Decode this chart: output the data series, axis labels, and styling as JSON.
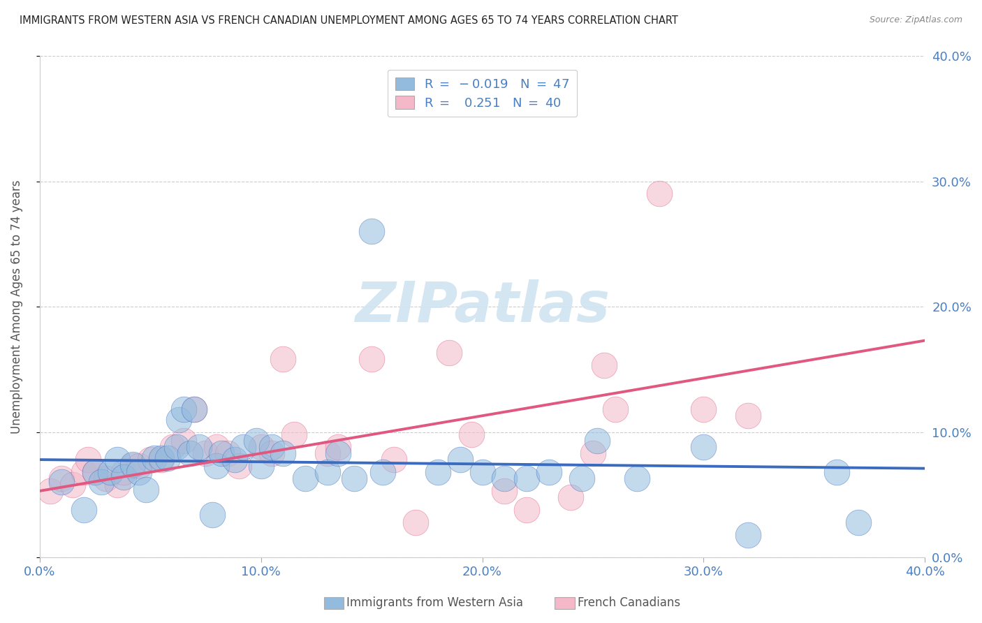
{
  "title": "IMMIGRANTS FROM WESTERN ASIA VS FRENCH CANADIAN UNEMPLOYMENT AMONG AGES 65 TO 74 YEARS CORRELATION CHART",
  "source": "Source: ZipAtlas.com",
  "ylabel": "Unemployment Among Ages 65 to 74 years",
  "xlim": [
    0.0,
    0.4
  ],
  "ylim": [
    0.0,
    0.4
  ],
  "xticks": [
    0.0,
    0.1,
    0.2,
    0.3,
    0.4
  ],
  "yticks": [
    0.0,
    0.1,
    0.2,
    0.3,
    0.4
  ],
  "xticklabels": [
    "0.0%",
    "10.0%",
    "20.0%",
    "30.0%",
    "40.0%"
  ],
  "yticklabels_right": [
    "0.0%",
    "10.0%",
    "20.0%",
    "30.0%",
    "40.0%"
  ],
  "blue_color": "#92bbde",
  "pink_color": "#f4b8c8",
  "trend_blue": "#3a6bbf",
  "trend_pink": "#e05880",
  "watermark_color": "#d0e4f0",
  "blue_scatter_x": [
    0.01,
    0.02,
    0.025,
    0.028,
    0.032,
    0.035,
    0.038,
    0.042,
    0.045,
    0.048,
    0.052,
    0.055,
    0.058,
    0.062,
    0.063,
    0.065,
    0.068,
    0.07,
    0.072,
    0.078,
    0.08,
    0.082,
    0.088,
    0.092,
    0.098,
    0.1,
    0.105,
    0.11,
    0.12,
    0.13,
    0.135,
    0.142,
    0.15,
    0.155,
    0.18,
    0.19,
    0.2,
    0.21,
    0.22,
    0.23,
    0.245,
    0.252,
    0.27,
    0.3,
    0.32,
    0.36,
    0.37
  ],
  "blue_scatter_y": [
    0.06,
    0.038,
    0.068,
    0.06,
    0.068,
    0.078,
    0.064,
    0.074,
    0.068,
    0.054,
    0.079,
    0.079,
    0.079,
    0.088,
    0.11,
    0.118,
    0.083,
    0.118,
    0.088,
    0.034,
    0.073,
    0.083,
    0.078,
    0.088,
    0.093,
    0.073,
    0.088,
    0.083,
    0.063,
    0.068,
    0.083,
    0.063,
    0.26,
    0.068,
    0.068,
    0.078,
    0.068,
    0.063,
    0.063,
    0.068,
    0.063,
    0.093,
    0.063,
    0.088,
    0.018,
    0.068,
    0.028
  ],
  "pink_scatter_x": [
    0.005,
    0.01,
    0.015,
    0.02,
    0.022,
    0.025,
    0.03,
    0.035,
    0.038,
    0.042,
    0.045,
    0.05,
    0.055,
    0.06,
    0.065,
    0.07,
    0.075,
    0.08,
    0.085,
    0.09,
    0.1,
    0.105,
    0.11,
    0.115,
    0.13,
    0.135,
    0.15,
    0.16,
    0.17,
    0.185,
    0.195,
    0.21,
    0.22,
    0.24,
    0.25,
    0.255,
    0.26,
    0.28,
    0.3,
    0.32
  ],
  "pink_scatter_y": [
    0.053,
    0.063,
    0.058,
    0.068,
    0.078,
    0.068,
    0.063,
    0.058,
    0.068,
    0.073,
    0.073,
    0.078,
    0.078,
    0.088,
    0.093,
    0.118,
    0.083,
    0.088,
    0.083,
    0.073,
    0.088,
    0.083,
    0.158,
    0.098,
    0.083,
    0.088,
    0.158,
    0.078,
    0.028,
    0.163,
    0.098,
    0.053,
    0.038,
    0.048,
    0.083,
    0.153,
    0.118,
    0.29,
    0.118,
    0.113
  ],
  "blue_trend_x": [
    0.0,
    0.4
  ],
  "blue_trend_y": [
    0.078,
    0.071
  ],
  "pink_trend_x": [
    0.0,
    0.4
  ],
  "pink_trend_y": [
    0.053,
    0.173
  ],
  "background_color": "#ffffff",
  "grid_color": "#cccccc",
  "title_color": "#222222",
  "axis_label_color": "#555555",
  "right_axis_color": "#4a7fc1",
  "tick_color": "#4a7fc1"
}
